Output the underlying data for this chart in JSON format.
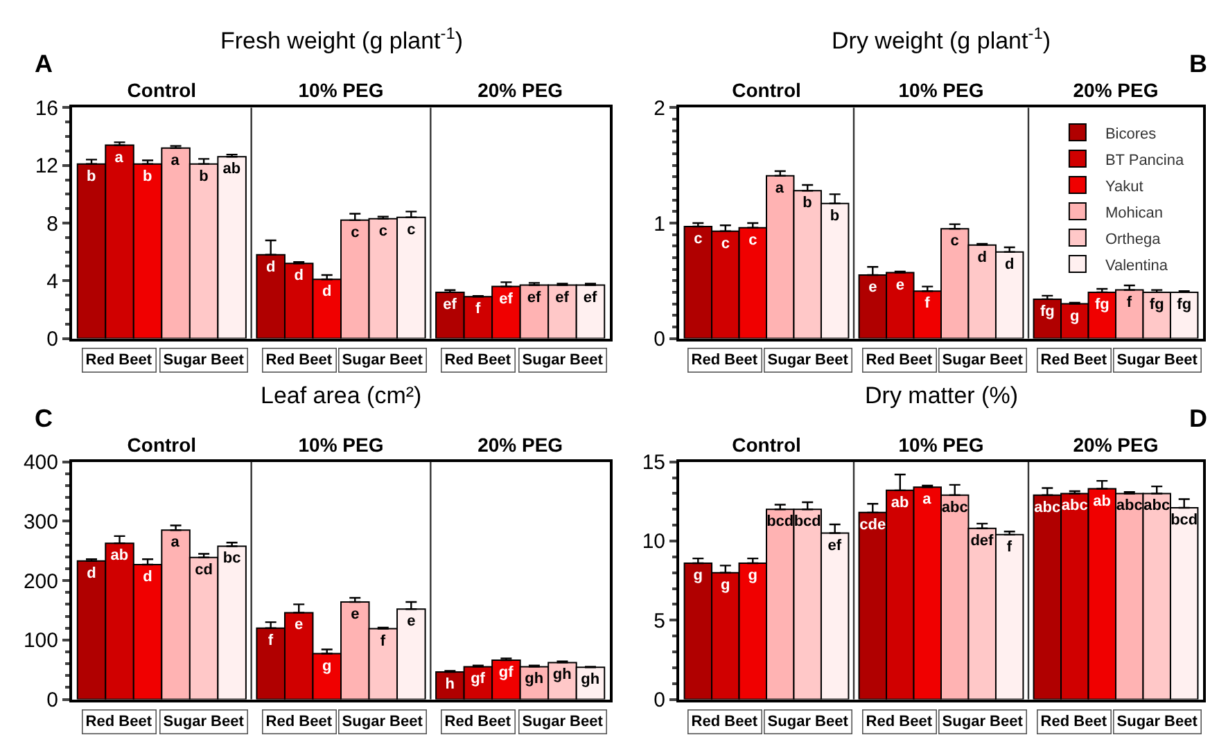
{
  "chart_data": [
    {
      "type": "bar",
      "title": "Fresh weight (g plant$^{-1}$)",
      "categories": [
        "Control",
        "10% PEG",
        "20% PEG"
      ],
      "ylim": [
        0,
        16
      ],
      "yticks": [
        0,
        4,
        8,
        12,
        16
      ],
      "annotations": [
        "A",
        "Red Beet",
        "Sugar Beet",
        "Red Beet",
        "Sugar Beet",
        "Red Beet",
        "Sugar Beet"
      ],
      "series": [
        {
          "color": "#b00000",
          "values": [
            12.1,
            5.8,
            3.2
          ],
          "errors": [
            0.3,
            1.0,
            0.15
          ],
          "value_labels": [
            "b",
            "d",
            "ef"
          ]
        },
        {
          "color": "#d00000",
          "values": [
            13.4,
            5.2,
            2.9
          ],
          "errors": [
            0.2,
            0.1,
            0.05
          ],
          "value_labels": [
            "a",
            "d",
            "f"
          ]
        },
        {
          "color": "#f00000",
          "values": [
            12.1,
            4.1,
            3.6
          ],
          "errors": [
            0.25,
            0.3,
            0.3
          ],
          "value_labels": [
            "b",
            "d",
            "ef"
          ]
        },
        {
          "color": "#ffb3b3",
          "values": [
            13.2,
            8.2,
            3.7
          ],
          "errors": [
            0.15,
            0.45,
            0.15
          ],
          "value_labels": [
            "a",
            "c",
            "ef"
          ]
        },
        {
          "color": "#ffc8c8",
          "values": [
            12.1,
            8.3,
            3.7
          ],
          "errors": [
            0.35,
            0.15,
            0.1
          ],
          "value_labels": [
            "b",
            "c",
            "ef"
          ]
        },
        {
          "color": "#fff0f0",
          "values": [
            12.6,
            8.4,
            3.7
          ],
          "errors": [
            0.15,
            0.4,
            0.1
          ],
          "value_labels": [
            "ab",
            "c",
            "ef"
          ]
        }
      ]
    },
    {
      "type": "bar",
      "title": "Dry weight (g plant$^{-1}$)",
      "categories": [
        "Control",
        "10% PEG",
        "20% PEG"
      ],
      "ylim": [
        0,
        2
      ],
      "yticks": [
        0,
        1,
        2
      ],
      "legend": "top right",
      "annotations": [
        "B",
        "Red Beet",
        "Sugar Beet",
        "Red Beet",
        "Sugar Beet",
        "Red Beet",
        "Sugar Beet"
      ],
      "series": [
        {
          "name": "Bicores",
          "color": "#b00000",
          "values": [
            0.97,
            0.55,
            0.34
          ],
          "errors": [
            0.03,
            0.07,
            0.03
          ],
          "value_labels": [
            "c",
            "e",
            "fg"
          ]
        },
        {
          "name": "BT Pancina",
          "color": "#d00000",
          "values": [
            0.93,
            0.57,
            0.3
          ],
          "errors": [
            0.05,
            0.01,
            0.01
          ],
          "value_labels": [
            "c",
            "e",
            "g"
          ]
        },
        {
          "name": "Yakut",
          "color": "#f00000",
          "values": [
            0.96,
            0.41,
            0.4
          ],
          "errors": [
            0.04,
            0.04,
            0.03
          ],
          "value_labels": [
            "c",
            "f",
            "fg"
          ]
        },
        {
          "name": "Mohican",
          "color": "#ffb3b3",
          "values": [
            1.41,
            0.95,
            0.42
          ],
          "errors": [
            0.04,
            0.04,
            0.04
          ],
          "value_labels": [
            "a",
            "c",
            "f"
          ]
        },
        {
          "name": "Orthega",
          "color": "#ffc8c8",
          "values": [
            1.28,
            0.81,
            0.4
          ],
          "errors": [
            0.05,
            0.01,
            0.02
          ],
          "value_labels": [
            "b",
            "d",
            "fg"
          ]
        },
        {
          "name": "Valentina",
          "color": "#fff0f0",
          "values": [
            1.17,
            0.75,
            0.4
          ],
          "errors": [
            0.08,
            0.04,
            0.01
          ],
          "value_labels": [
            "b",
            "d",
            "fg"
          ]
        }
      ]
    },
    {
      "type": "bar",
      "title": "Leaf area (cm²)",
      "categories": [
        "Control",
        "10% PEG",
        "20% PEG"
      ],
      "ylim": [
        0,
        400
      ],
      "yticks": [
        0,
        100,
        200,
        300,
        400
      ],
      "annotations": [
        "C",
        "Red Beet",
        "Sugar Beet",
        "Red Beet",
        "Sugar Beet",
        "Red Beet",
        "Sugar Beet"
      ],
      "series": [
        {
          "color": "#b00000",
          "values": [
            233,
            120,
            46
          ],
          "errors": [
            3,
            10,
            2
          ],
          "value_labels": [
            "d",
            "f",
            "h"
          ]
        },
        {
          "color": "#d00000",
          "values": [
            263,
            146,
            55
          ],
          "errors": [
            12,
            14,
            2
          ],
          "value_labels": [
            "ab",
            "e",
            "gf"
          ]
        },
        {
          "color": "#f00000",
          "values": [
            227,
            77,
            66
          ],
          "errors": [
            9,
            7,
            3
          ],
          "value_labels": [
            "d",
            "g",
            "gf"
          ]
        },
        {
          "color": "#ffb3b3",
          "values": [
            285,
            164,
            55
          ],
          "errors": [
            8,
            7,
            2
          ],
          "value_labels": [
            "a",
            "e",
            "gh"
          ]
        },
        {
          "color": "#ffc8c8",
          "values": [
            239,
            119,
            62
          ],
          "errors": [
            6,
            2,
            2
          ],
          "value_labels": [
            "cd",
            "f",
            "gh"
          ]
        },
        {
          "color": "#fff0f0",
          "values": [
            258,
            152,
            54
          ],
          "errors": [
            6,
            12,
            1
          ],
          "value_labels": [
            "bc",
            "e",
            "gh"
          ]
        }
      ]
    },
    {
      "type": "bar",
      "title": "Dry matter (%)",
      "categories": [
        "Control",
        "10% PEG",
        "20% PEG"
      ],
      "ylim": [
        0,
        15
      ],
      "yticks": [
        0,
        5,
        10,
        15
      ],
      "annotations": [
        "D",
        "Red Beet",
        "Sugar Beet",
        "Red Beet",
        "Sugar Beet",
        "Red Beet",
        "Sugar Beet"
      ],
      "series": [
        {
          "color": "#b00000",
          "values": [
            8.6,
            11.8,
            12.9
          ],
          "errors": [
            0.3,
            0.55,
            0.45
          ],
          "value_labels": [
            "g",
            "cde",
            "abc"
          ]
        },
        {
          "color": "#d00000",
          "values": [
            8.0,
            13.2,
            13.0
          ],
          "errors": [
            0.45,
            1.0,
            0.15
          ],
          "value_labels": [
            "g",
            "ab",
            "abc"
          ]
        },
        {
          "color": "#f00000",
          "values": [
            8.6,
            13.4,
            13.3
          ],
          "errors": [
            0.3,
            0.1,
            0.5
          ],
          "value_labels": [
            "g",
            "a",
            "ab"
          ]
        },
        {
          "color": "#ffb3b3",
          "values": [
            12.0,
            12.9,
            13.0
          ],
          "errors": [
            0.3,
            0.65,
            0.1
          ],
          "value_labels": [
            "bcd",
            "abc",
            "abc"
          ]
        },
        {
          "color": "#ffc8c8",
          "values": [
            12.0,
            10.8,
            13.0
          ],
          "errors": [
            0.45,
            0.3,
            0.45
          ],
          "value_labels": [
            "bcd",
            "def",
            "abc"
          ]
        },
        {
          "color": "#fff0f0",
          "values": [
            10.5,
            10.4,
            12.1
          ],
          "errors": [
            0.55,
            0.2,
            0.55
          ],
          "value_labels": [
            "ef",
            "f",
            "bcd"
          ]
        }
      ]
    }
  ]
}
